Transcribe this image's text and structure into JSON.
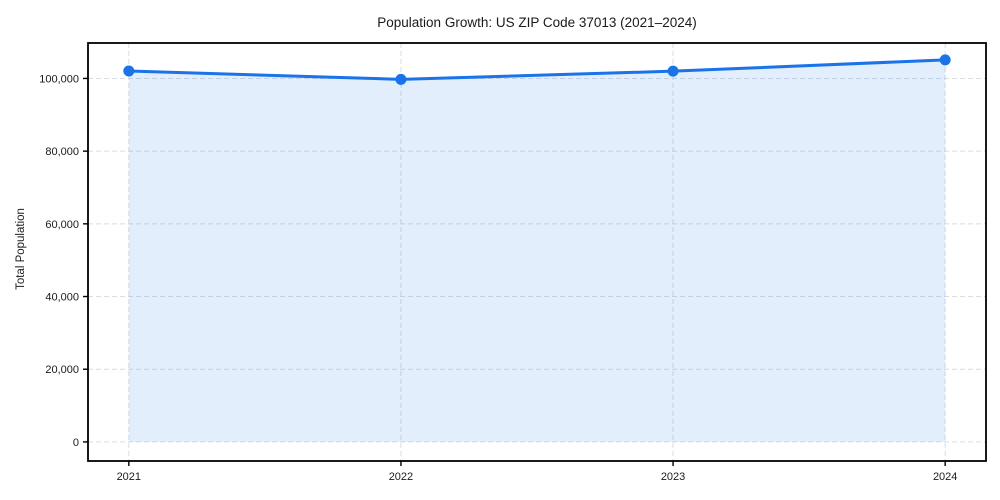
{
  "chart_data": {
    "type": "line",
    "title": "Population Growth: US ZIP Code 37013 (2021–2024)",
    "xlabel": "",
    "ylabel": "Total Population",
    "x": [
      2021,
      2022,
      2023,
      2024
    ],
    "series": [
      {
        "name": "Total Population",
        "values": [
          102050,
          99750,
          102000,
          105100
        ]
      }
    ],
    "x_tick_labels": [
      "2021",
      "2022",
      "2023",
      "2024"
    ],
    "y_ticks": [
      0,
      20000,
      40000,
      60000,
      80000,
      100000
    ],
    "y_tick_labels": [
      "0",
      "20,000",
      "40,000",
      "60,000",
      "80,000",
      "100,000"
    ],
    "xlim": [
      2020.85,
      2024.15
    ],
    "ylim": [
      -5250,
      109750
    ],
    "grid": true,
    "grid_style": "dashed",
    "legend": false,
    "area_fill": true,
    "colors": {
      "line": "#1a73e8",
      "marker": "#1a73e8",
      "fill": "rgba(26,115,232,0.12)",
      "grid": "#d8dce3",
      "spine": "#000000",
      "text": "#1a1a1a",
      "background": "#ffffff"
    }
  }
}
